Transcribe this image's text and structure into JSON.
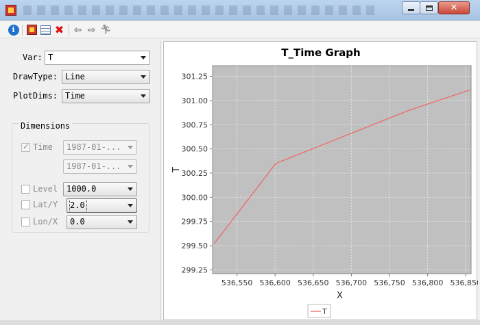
{
  "left": {
    "var_label": "Var:",
    "var_value": "T",
    "drawtype_label": "DrawType:",
    "drawtype_value": "Line",
    "plotdims_label": "PlotDims:",
    "plotdims_value": "Time",
    "dimensions_title": "Dimensions",
    "dims": {
      "time_label": "Time",
      "time_checked": true,
      "time_start": "1987-01-...",
      "time_end": "1987-01-...",
      "level_label": "Level",
      "level_value": "1000.0",
      "lat_label": "Lat/Y",
      "lat_value": "2.0",
      "lon_label": "Lon/X",
      "lon_value": "0.0"
    }
  },
  "toolbar": {
    "icons": [
      "info-icon",
      "plot-icon",
      "table-icon",
      "delete-icon",
      "back-arrow-icon",
      "forward-arrow-icon",
      "run-icon"
    ]
  },
  "window": {
    "close_glyph": "✕"
  },
  "chart_data": {
    "type": "line",
    "title": "T_Time Graph",
    "xlabel": "X",
    "ylabel": "T",
    "xlim": [
      536518,
      536857
    ],
    "ylim": [
      299.21,
      301.36
    ],
    "xticks": [
      536550,
      536600,
      536650,
      536700,
      536750,
      536800,
      536850
    ],
    "xtick_labels": [
      "536,550",
      "536,600",
      "536,650",
      "536,700",
      "536,750",
      "536,800",
      "536,850"
    ],
    "yticks": [
      299.25,
      299.5,
      299.75,
      300.0,
      300.25,
      300.5,
      300.75,
      301.0,
      301.25
    ],
    "ytick_labels": [
      "299.25",
      "299.50",
      "299.75",
      "300.00",
      "300.25",
      "300.50",
      "300.75",
      "301.00",
      "301.25"
    ],
    "grid": true,
    "plot_background": "#c0c0c0",
    "legend_position": "bottom-center",
    "series": [
      {
        "name": "T",
        "color": "#ee6a6a",
        "x": [
          536520,
          536601,
          536776,
          536856
        ],
        "y": [
          299.52,
          300.35,
          300.9,
          301.11
        ]
      }
    ]
  }
}
